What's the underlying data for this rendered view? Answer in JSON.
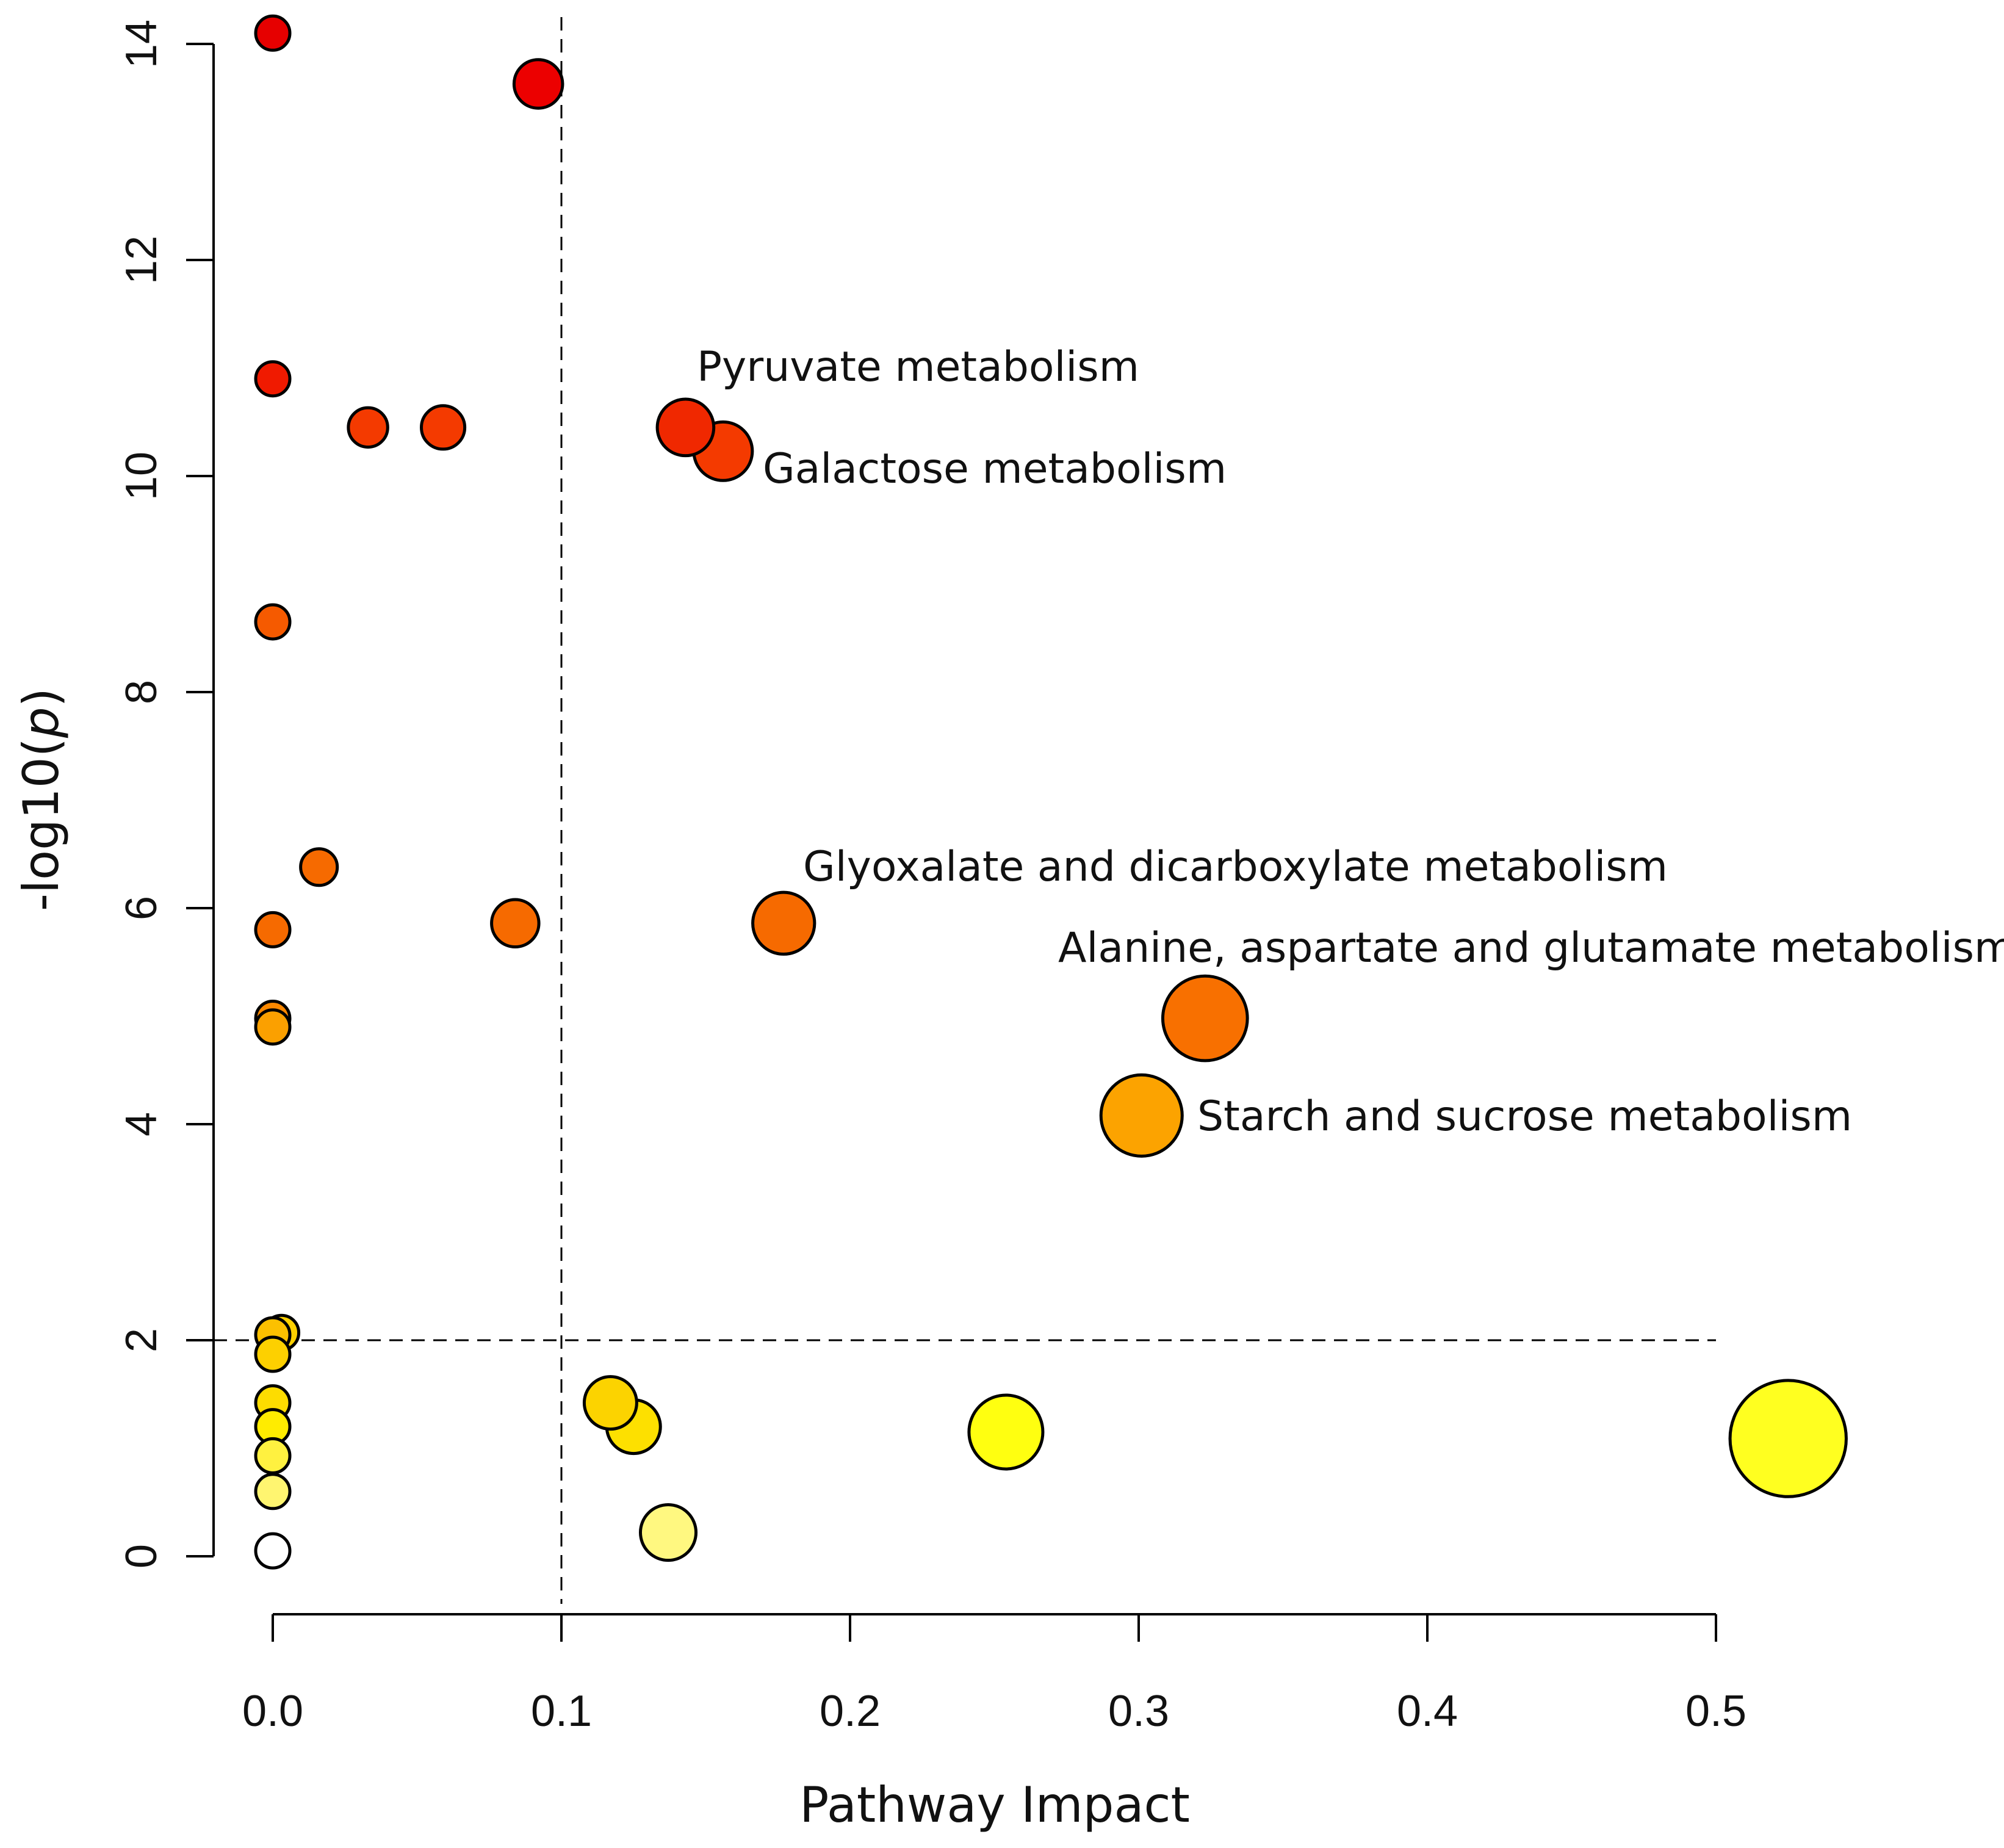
{
  "chart_data": {
    "type": "scatter",
    "title": "",
    "xlabel": "Pathway Impact",
    "ylabel_prefix": "-log10(",
    "ylabel_italic": "p",
    "ylabel_suffix": ")",
    "xlim": [
      0,
      0.5
    ],
    "ylim": [
      0,
      14
    ],
    "x_ticks": [
      {
        "value": 0.0,
        "label": "0.0"
      },
      {
        "value": 0.1,
        "label": "0.1"
      },
      {
        "value": 0.2,
        "label": "0.2"
      },
      {
        "value": 0.3,
        "label": "0.3"
      },
      {
        "value": 0.4,
        "label": "0.4"
      },
      {
        "value": 0.5,
        "label": "0.5"
      }
    ],
    "y_ticks": [
      {
        "value": 0,
        "label": "0"
      },
      {
        "value": 2,
        "label": "2"
      },
      {
        "value": 4,
        "label": "4"
      },
      {
        "value": 6,
        "label": "6"
      },
      {
        "value": 8,
        "label": "8"
      },
      {
        "value": 10,
        "label": "10"
      },
      {
        "value": 12,
        "label": "12"
      },
      {
        "value": 14,
        "label": "14"
      }
    ],
    "thresholds": {
      "x": 0.1,
      "y": 2
    },
    "size_encoding": "pathway impact",
    "color_encoding": "-log10(p), red = high, white = low",
    "points": [
      {
        "x": 0.0,
        "y": 14.1,
        "size": 0.0,
        "color": "#e60000",
        "label": ""
      },
      {
        "x": 0.092,
        "y": 13.63,
        "size": 0.092,
        "color": "#ec0000",
        "label": ""
      },
      {
        "x": 0.0,
        "y": 10.9,
        "size": 0.0,
        "color": "#f01a00",
        "label": ""
      },
      {
        "x": 0.033,
        "y": 10.45,
        "size": 0.033,
        "color": "#f43a00",
        "label": ""
      },
      {
        "x": 0.059,
        "y": 10.45,
        "size": 0.059,
        "color": "#f43a00",
        "label": ""
      },
      {
        "x": 0.143,
        "y": 10.45,
        "size": 0.143,
        "color": "#f02800",
        "label": "Pyruvate metabolism"
      },
      {
        "x": 0.156,
        "y": 10.23,
        "size": 0.156,
        "color": "#f43a00",
        "label": "Galactose metabolism"
      },
      {
        "x": 0.0,
        "y": 8.65,
        "size": 0.0,
        "color": "#f55a00",
        "label": ""
      },
      {
        "x": 0.016,
        "y": 6.38,
        "size": 0.016,
        "color": "#f66a00",
        "label": ""
      },
      {
        "x": 0.0,
        "y": 5.8,
        "size": 0.0,
        "color": "#f66a00",
        "label": ""
      },
      {
        "x": 0.084,
        "y": 5.86,
        "size": 0.084,
        "color": "#f66a00",
        "label": ""
      },
      {
        "x": 0.177,
        "y": 5.86,
        "size": 0.177,
        "color": "#f66a00",
        "label": "Glyoxalate and dicarboxylate metabolism"
      },
      {
        "x": 0.0,
        "y": 4.98,
        "size": 0.0,
        "color": "#fb8800",
        "label": ""
      },
      {
        "x": 0.0,
        "y": 4.9,
        "size": 0.0,
        "color": "#fba000",
        "label": ""
      },
      {
        "x": 0.323,
        "y": 4.98,
        "size": 0.323,
        "color": "#f87000",
        "label": "Alanine, aspartate and glutamate metabolism"
      },
      {
        "x": 0.301,
        "y": 4.08,
        "size": 0.301,
        "color": "#fca300",
        "label": "Starch and sucrose metabolism"
      },
      {
        "x": 0.003,
        "y": 2.07,
        "size": 0.003,
        "color": "#fdd000",
        "label": ""
      },
      {
        "x": 0.0,
        "y": 2.05,
        "size": 0.0,
        "color": "#fcc000",
        "label": ""
      },
      {
        "x": 0.0,
        "y": 1.87,
        "size": 0.0,
        "color": "#fdd000",
        "label": ""
      },
      {
        "x": 0.0,
        "y": 1.42,
        "size": 0.0,
        "color": "#fddc00",
        "label": ""
      },
      {
        "x": 0.117,
        "y": 1.42,
        "size": 0.117,
        "color": "#fcd300",
        "label": ""
      },
      {
        "x": 0.0,
        "y": 1.2,
        "size": 0.0,
        "color": "#ffec00",
        "label": ""
      },
      {
        "x": 0.125,
        "y": 1.2,
        "size": 0.125,
        "color": "#fde000",
        "label": ""
      },
      {
        "x": 0.254,
        "y": 1.15,
        "size": 0.254,
        "color": "#ffff10",
        "label": ""
      },
      {
        "x": 0.525,
        "y": 1.09,
        "size": 0.525,
        "color": "#ffff20",
        "label": ""
      },
      {
        "x": 0.0,
        "y": 0.93,
        "size": 0.0,
        "color": "#fff140",
        "label": ""
      },
      {
        "x": 0.0,
        "y": 0.6,
        "size": 0.0,
        "color": "#fff570",
        "label": ""
      },
      {
        "x": 0.137,
        "y": 0.22,
        "size": 0.137,
        "color": "#fff880",
        "label": ""
      },
      {
        "x": 0.0,
        "y": 0.05,
        "size": 0.0,
        "color": "#ffffff",
        "label": ""
      }
    ]
  }
}
